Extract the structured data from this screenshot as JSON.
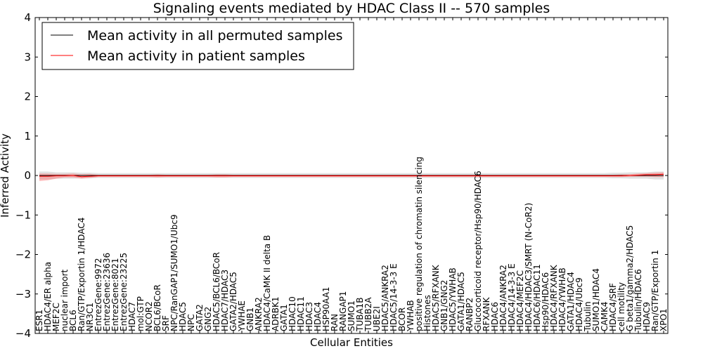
{
  "chart_data": {
    "type": "line",
    "title": "Signaling events mediated by HDAC Class II -- 570 samples",
    "xlabel": "Cellular Entities",
    "ylabel": "Inferred Activity",
    "ylim": [
      -4,
      4
    ],
    "yticks": [
      -4,
      -3,
      -2,
      -1,
      0,
      1,
      2,
      3,
      4
    ],
    "ytick_labels": [
      "−4",
      "−3",
      "−2",
      "−1",
      "0",
      "1",
      "2",
      "3",
      "4"
    ],
    "legend": {
      "placement": "top-left",
      "entries": [
        {
          "label": "Mean activity in all permuted samples",
          "color": "#000000"
        },
        {
          "label": "Mean activity in patient samples",
          "color": "#ff0000"
        }
      ]
    },
    "categories": [
      "ESR1",
      "HDAC4/ER alpha",
      "MEF2C",
      "nuclear import",
      "BCL6",
      "Ran/GTP/Exportin 1/HDAC4",
      "NR3C1",
      "EntrezGene:9972",
      "EntrezGene:23636",
      "EntrezGene:8021",
      "EntrezGene:23225",
      "HDAC7",
      "mol:GTP",
      "NCOR2",
      "BCL6/BCoR",
      "SRF",
      "NPC/RanGAP1/SUMO1/Ubc9",
      "HDAC5",
      "NPC",
      "GATA2",
      "GNG2",
      "HDAC5/BCL6/BCoR",
      "HDAC7/HDAC3",
      "GATA2/HDAC5",
      "YWHAE",
      "GNB1",
      "ANKRA2",
      "HDAC4/CaMK II delta B",
      "ADRBK1",
      "GATA1",
      "HDAC10",
      "HDAC11",
      "HDAC3",
      "HDAC4",
      "HSP90AA1",
      "RAN",
      "RANGAP1",
      "SUMO1",
      "TUBA1B",
      "TUBB2A",
      "UBE2I",
      "HDAC5/ANKRA2",
      "HDAC5/14-3-3 E",
      "BCOR",
      "YWHAB",
      "positive regulation of chromatin silencing",
      "Histones",
      "HDAC5/RFXANK",
      "GNB1/GNG2",
      "HDAC5/YWHAB",
      "GATA1/HDAC5",
      "RANBP2",
      "Glucocorticoid receptor/Hsp90/HDAC6",
      "RFXANK",
      "HDAC6",
      "HDAC4/ANKRA2",
      "HDAC4/14-3-3 E",
      "HDAC4/MEF2C",
      "HDAC4/HDAC3/SMRT (N-CoR2)",
      "HDAC6/HDAC11",
      "Hsp90/HDAC6",
      "HDAC4/RFXANK",
      "HDAC4/YWHAB",
      "GATA1/HDAC4",
      "HDAC4/Ubc9",
      "Tubulin",
      "SUMO1/HDAC4",
      "CAMK4",
      "HDAC4/SRF",
      "cell motility",
      "G beta1/gamma2/HDAC5",
      "Tubulin/HDAC6",
      "HDAC9",
      "Ran/GTP/Exportin 1",
      "XPO1"
    ],
    "series": [
      {
        "name": "Mean activity in all permuted samples",
        "color": "#000000",
        "values": [
          0,
          0,
          0,
          0,
          0,
          0,
          0,
          0,
          0,
          0,
          0,
          0,
          0,
          0,
          0,
          0,
          0,
          0,
          0,
          0,
          0,
          0,
          0,
          0,
          0,
          0,
          0,
          0,
          0,
          0,
          0,
          0,
          0,
          0,
          0,
          0,
          0,
          0,
          0,
          0,
          0,
          0,
          0,
          0,
          0,
          0,
          0,
          0,
          0,
          0,
          0,
          0,
          0,
          0,
          0,
          0,
          0,
          0,
          0,
          0,
          0,
          0,
          0,
          0,
          0,
          0,
          0,
          0,
          0,
          0,
          0,
          0,
          0,
          0,
          0
        ],
        "band_lower": [
          -0.1,
          -0.1,
          -0.08,
          -0.08,
          -0.08,
          -0.07,
          -0.07,
          -0.06,
          -0.06,
          -0.06,
          -0.06,
          -0.06,
          -0.06,
          -0.06,
          -0.06,
          -0.06,
          -0.06,
          -0.06,
          -0.06,
          -0.06,
          -0.06,
          -0.06,
          -0.06,
          -0.06,
          -0.06,
          -0.06,
          -0.06,
          -0.06,
          -0.06,
          -0.06,
          -0.06,
          -0.06,
          -0.06,
          -0.06,
          -0.06,
          -0.06,
          -0.06,
          -0.06,
          -0.06,
          -0.06,
          -0.06,
          -0.06,
          -0.06,
          -0.06,
          -0.06,
          -0.06,
          -0.06,
          -0.06,
          -0.06,
          -0.06,
          -0.06,
          -0.06,
          -0.06,
          -0.06,
          -0.06,
          -0.06,
          -0.06,
          -0.06,
          -0.06,
          -0.06,
          -0.06,
          -0.06,
          -0.06,
          -0.06,
          -0.06,
          -0.06,
          -0.06,
          -0.06,
          -0.07,
          -0.07,
          -0.08,
          -0.08,
          -0.08,
          -0.1,
          -0.1
        ],
        "band_upper": [
          0.1,
          0.1,
          0.08,
          0.08,
          0.08,
          0.07,
          0.07,
          0.06,
          0.06,
          0.06,
          0.06,
          0.06,
          0.06,
          0.06,
          0.06,
          0.06,
          0.06,
          0.06,
          0.06,
          0.06,
          0.06,
          0.06,
          0.06,
          0.06,
          0.06,
          0.06,
          0.06,
          0.06,
          0.06,
          0.06,
          0.06,
          0.06,
          0.06,
          0.06,
          0.06,
          0.06,
          0.06,
          0.06,
          0.06,
          0.06,
          0.06,
          0.06,
          0.06,
          0.06,
          0.06,
          0.06,
          0.06,
          0.06,
          0.06,
          0.06,
          0.06,
          0.06,
          0.06,
          0.06,
          0.06,
          0.06,
          0.06,
          0.06,
          0.06,
          0.06,
          0.06,
          0.06,
          0.06,
          0.06,
          0.06,
          0.06,
          0.06,
          0.06,
          0.07,
          0.07,
          0.08,
          0.08,
          0.08,
          0.1,
          0.1
        ]
      },
      {
        "name": "Mean activity in patient samples",
        "color": "#ff0000",
        "values": [
          -0.02,
          -0.02,
          -0.01,
          -0.01,
          0,
          -0.03,
          -0.02,
          -0.01,
          -0.01,
          -0.01,
          -0.01,
          -0.01,
          -0.01,
          -0.01,
          -0.01,
          -0.01,
          -0.01,
          -0.01,
          -0.01,
          -0.01,
          -0.01,
          -0.01,
          -0.01,
          -0.01,
          -0.01,
          -0.01,
          -0.01,
          -0.01,
          -0.01,
          -0.01,
          -0.01,
          -0.01,
          -0.01,
          -0.01,
          -0.01,
          -0.01,
          -0.01,
          -0.01,
          -0.01,
          -0.01,
          -0.01,
          -0.01,
          -0.01,
          -0.01,
          -0.01,
          -0.01,
          -0.01,
          -0.01,
          -0.01,
          -0.01,
          -0.01,
          -0.01,
          -0.01,
          -0.01,
          -0.01,
          -0.01,
          -0.01,
          -0.01,
          -0.01,
          -0.01,
          -0.01,
          -0.01,
          -0.01,
          -0.01,
          -0.01,
          -0.01,
          -0.01,
          -0.01,
          -0.01,
          -0.01,
          0,
          0.01,
          0.02,
          0.02,
          0.03
        ],
        "band_lower": [
          -0.14,
          -0.12,
          -0.08,
          -0.05,
          -0.05,
          -0.08,
          -0.06,
          -0.04,
          -0.04,
          -0.04,
          -0.04,
          -0.04,
          -0.04,
          -0.04,
          -0.05,
          -0.04,
          -0.04,
          -0.04,
          -0.04,
          -0.04,
          -0.04,
          -0.05,
          -0.05,
          -0.04,
          -0.04,
          -0.04,
          -0.04,
          -0.04,
          -0.04,
          -0.04,
          -0.04,
          -0.04,
          -0.04,
          -0.04,
          -0.04,
          -0.04,
          -0.04,
          -0.04,
          -0.04,
          -0.04,
          -0.04,
          -0.04,
          -0.04,
          -0.04,
          -0.04,
          -0.04,
          -0.04,
          -0.04,
          -0.04,
          -0.04,
          -0.04,
          -0.04,
          -0.04,
          -0.04,
          -0.04,
          -0.04,
          -0.04,
          -0.04,
          -0.04,
          -0.04,
          -0.04,
          -0.04,
          -0.04,
          -0.04,
          -0.04,
          -0.04,
          -0.04,
          -0.04,
          -0.04,
          -0.04,
          -0.03,
          -0.03,
          -0.03,
          -0.04,
          -0.04
        ],
        "band_upper": [
          0.05,
          0.05,
          0.04,
          0.04,
          0.05,
          0.03,
          0.04,
          0.02,
          0.02,
          0.02,
          0.02,
          0.02,
          0.02,
          0.02,
          0.03,
          0.02,
          0.02,
          0.02,
          0.02,
          0.02,
          0.02,
          0.03,
          0.03,
          0.02,
          0.02,
          0.02,
          0.02,
          0.02,
          0.02,
          0.02,
          0.02,
          0.02,
          0.02,
          0.02,
          0.02,
          0.02,
          0.02,
          0.02,
          0.02,
          0.02,
          0.02,
          0.02,
          0.02,
          0.02,
          0.02,
          0.02,
          0.02,
          0.02,
          0.02,
          0.02,
          0.02,
          0.02,
          0.02,
          0.02,
          0.02,
          0.02,
          0.02,
          0.02,
          0.02,
          0.02,
          0.02,
          0.02,
          0.02,
          0.02,
          0.02,
          0.02,
          0.02,
          0.02,
          0.02,
          0.03,
          0.03,
          0.05,
          0.06,
          0.07,
          0.08
        ]
      }
    ]
  }
}
